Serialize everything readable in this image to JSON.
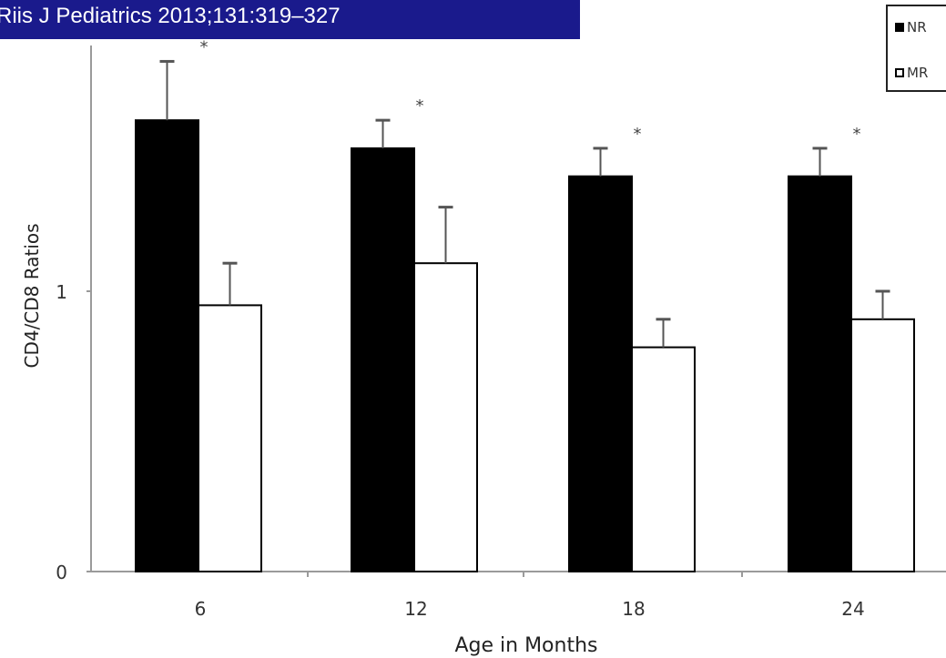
{
  "header": {
    "citation": "Riis J Pediatrics 2013;131:319–327",
    "background_color": "#1a1a8c"
  },
  "chart_data": {
    "type": "bar",
    "title": "",
    "xlabel": "Age in Months",
    "ylabel": "CD4/CD8 Ratios",
    "categories": [
      "6",
      "12",
      "18",
      "24"
    ],
    "ylim": [
      0,
      2
    ],
    "yticks": [
      "0",
      "1"
    ],
    "series": [
      {
        "name": "NR",
        "color": "#000000",
        "values": [
          1.61,
          1.51,
          1.41,
          1.41
        ],
        "error_upper": [
          1.82,
          1.61,
          1.51,
          1.51
        ]
      },
      {
        "name": "MR",
        "color": "#ffffff",
        "values": [
          0.95,
          1.1,
          0.8,
          0.9
        ],
        "error_upper": [
          1.1,
          1.3,
          0.9,
          1.0
        ]
      }
    ],
    "annotations": [
      "*",
      "*",
      "*",
      "*"
    ],
    "legend_position": "top-right"
  }
}
